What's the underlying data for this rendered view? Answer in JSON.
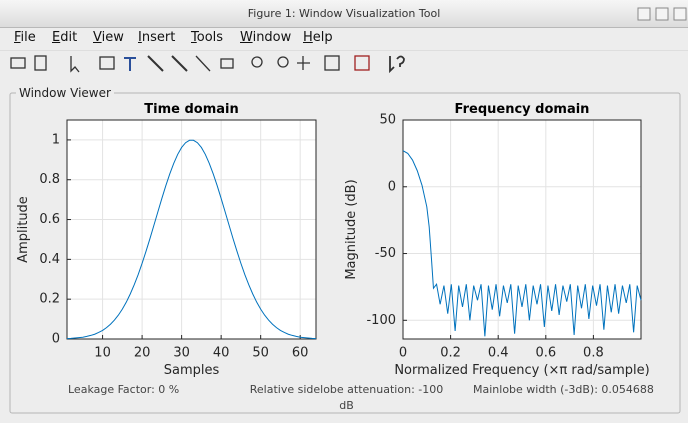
{
  "window": {
    "title": "Figure 1: Window Visualization Tool"
  },
  "menu": [
    "File",
    "Edit",
    "View",
    "Insert",
    "Tools",
    "Window",
    "Help"
  ],
  "panel": {
    "title": "Window Viewer"
  },
  "chart_data": [
    {
      "type": "line",
      "title": "Time domain",
      "xlabel": "Samples",
      "ylabel": "Amplitude",
      "color": "#0072bd",
      "grid": true,
      "x": [
        1,
        2,
        3,
        4,
        5,
        6,
        7,
        8,
        9,
        10,
        11,
        12,
        13,
        14,
        15,
        16,
        17,
        18,
        19,
        20,
        21,
        22,
        23,
        24,
        25,
        26,
        27,
        28,
        29,
        30,
        31,
        32,
        33,
        34,
        35,
        36,
        37,
        38,
        39,
        40,
        41,
        42,
        43,
        44,
        45,
        46,
        47,
        48,
        49,
        50,
        51,
        52,
        53,
        54,
        55,
        56,
        57,
        58,
        59,
        60,
        61,
        62,
        63,
        64
      ],
      "values": [
        0.002,
        0.003,
        0.005,
        0.007,
        0.009,
        0.013,
        0.018,
        0.024,
        0.033,
        0.043,
        0.057,
        0.074,
        0.095,
        0.12,
        0.15,
        0.185,
        0.226,
        0.272,
        0.323,
        0.38,
        0.441,
        0.505,
        0.572,
        0.639,
        0.706,
        0.77,
        0.829,
        0.882,
        0.927,
        0.962,
        0.986,
        0.998,
        0.998,
        0.986,
        0.962,
        0.927,
        0.882,
        0.829,
        0.77,
        0.706,
        0.639,
        0.572,
        0.505,
        0.441,
        0.38,
        0.323,
        0.272,
        0.226,
        0.185,
        0.15,
        0.12,
        0.095,
        0.074,
        0.057,
        0.043,
        0.033,
        0.024,
        0.018,
        0.013,
        0.009,
        0.007,
        0.005,
        0.003,
        0.002
      ],
      "xlim": [
        1,
        64
      ],
      "xticks": [
        10,
        20,
        30,
        40,
        50,
        60
      ],
      "ylim": [
        0,
        1.1
      ],
      "yticks": [
        0,
        0.2,
        0.4,
        0.6,
        0.8,
        1
      ]
    },
    {
      "type": "line",
      "title": "Frequency domain",
      "xlabel": "Normalized Frequency  (×π rad/sample)",
      "ylabel": "Magnitude (dB)",
      "color": "#0072bd",
      "grid": true,
      "x": [
        0,
        0.02,
        0.04,
        0.06,
        0.08,
        0.1,
        0.11,
        0.12,
        0.128,
        0.141,
        0.156,
        0.172,
        0.188,
        0.203,
        0.219,
        0.234,
        0.25,
        0.266,
        0.281,
        0.297,
        0.313,
        0.328,
        0.344,
        0.359,
        0.375,
        0.391,
        0.406,
        0.422,
        0.438,
        0.453,
        0.469,
        0.484,
        0.5,
        0.516,
        0.531,
        0.547,
        0.563,
        0.578,
        0.594,
        0.609,
        0.625,
        0.641,
        0.656,
        0.672,
        0.688,
        0.703,
        0.719,
        0.734,
        0.75,
        0.766,
        0.781,
        0.797,
        0.813,
        0.828,
        0.844,
        0.859,
        0.875,
        0.891,
        0.906,
        0.922,
        0.938,
        0.953,
        0.969,
        0.984,
        1
      ],
      "values": [
        27,
        25,
        20,
        12,
        1,
        -15,
        -30,
        -55,
        -76,
        -73,
        -88,
        -74,
        -95,
        -73,
        -108,
        -74,
        -90,
        -73,
        -100,
        -74,
        -85,
        -73,
        -112,
        -74,
        -92,
        -73,
        -97,
        -74,
        -87,
        -73,
        -110,
        -74,
        -90,
        -73,
        -100,
        -74,
        -88,
        -73,
        -105,
        -74,
        -93,
        -73,
        -96,
        -74,
        -86,
        -73,
        -111,
        -74,
        -91,
        -73,
        -99,
        -74,
        -89,
        -73,
        -107,
        -74,
        -94,
        -73,
        -95,
        -74,
        -87,
        -73,
        -109,
        -74,
        -85
      ],
      "xlim": [
        0,
        1
      ],
      "xticks": [
        0,
        0.2,
        0.4,
        0.6,
        0.8
      ],
      "ylim": [
        -114,
        50
      ],
      "yticks": [
        -100,
        -50,
        0,
        50
      ]
    }
  ],
  "footer": {
    "leakage": "Leakage Factor: 0 %",
    "sidelobe": "Relative sidelobe attenuation: -100 dB",
    "mainlobe": "Mainlobe width (-3dB): 0.054688"
  }
}
